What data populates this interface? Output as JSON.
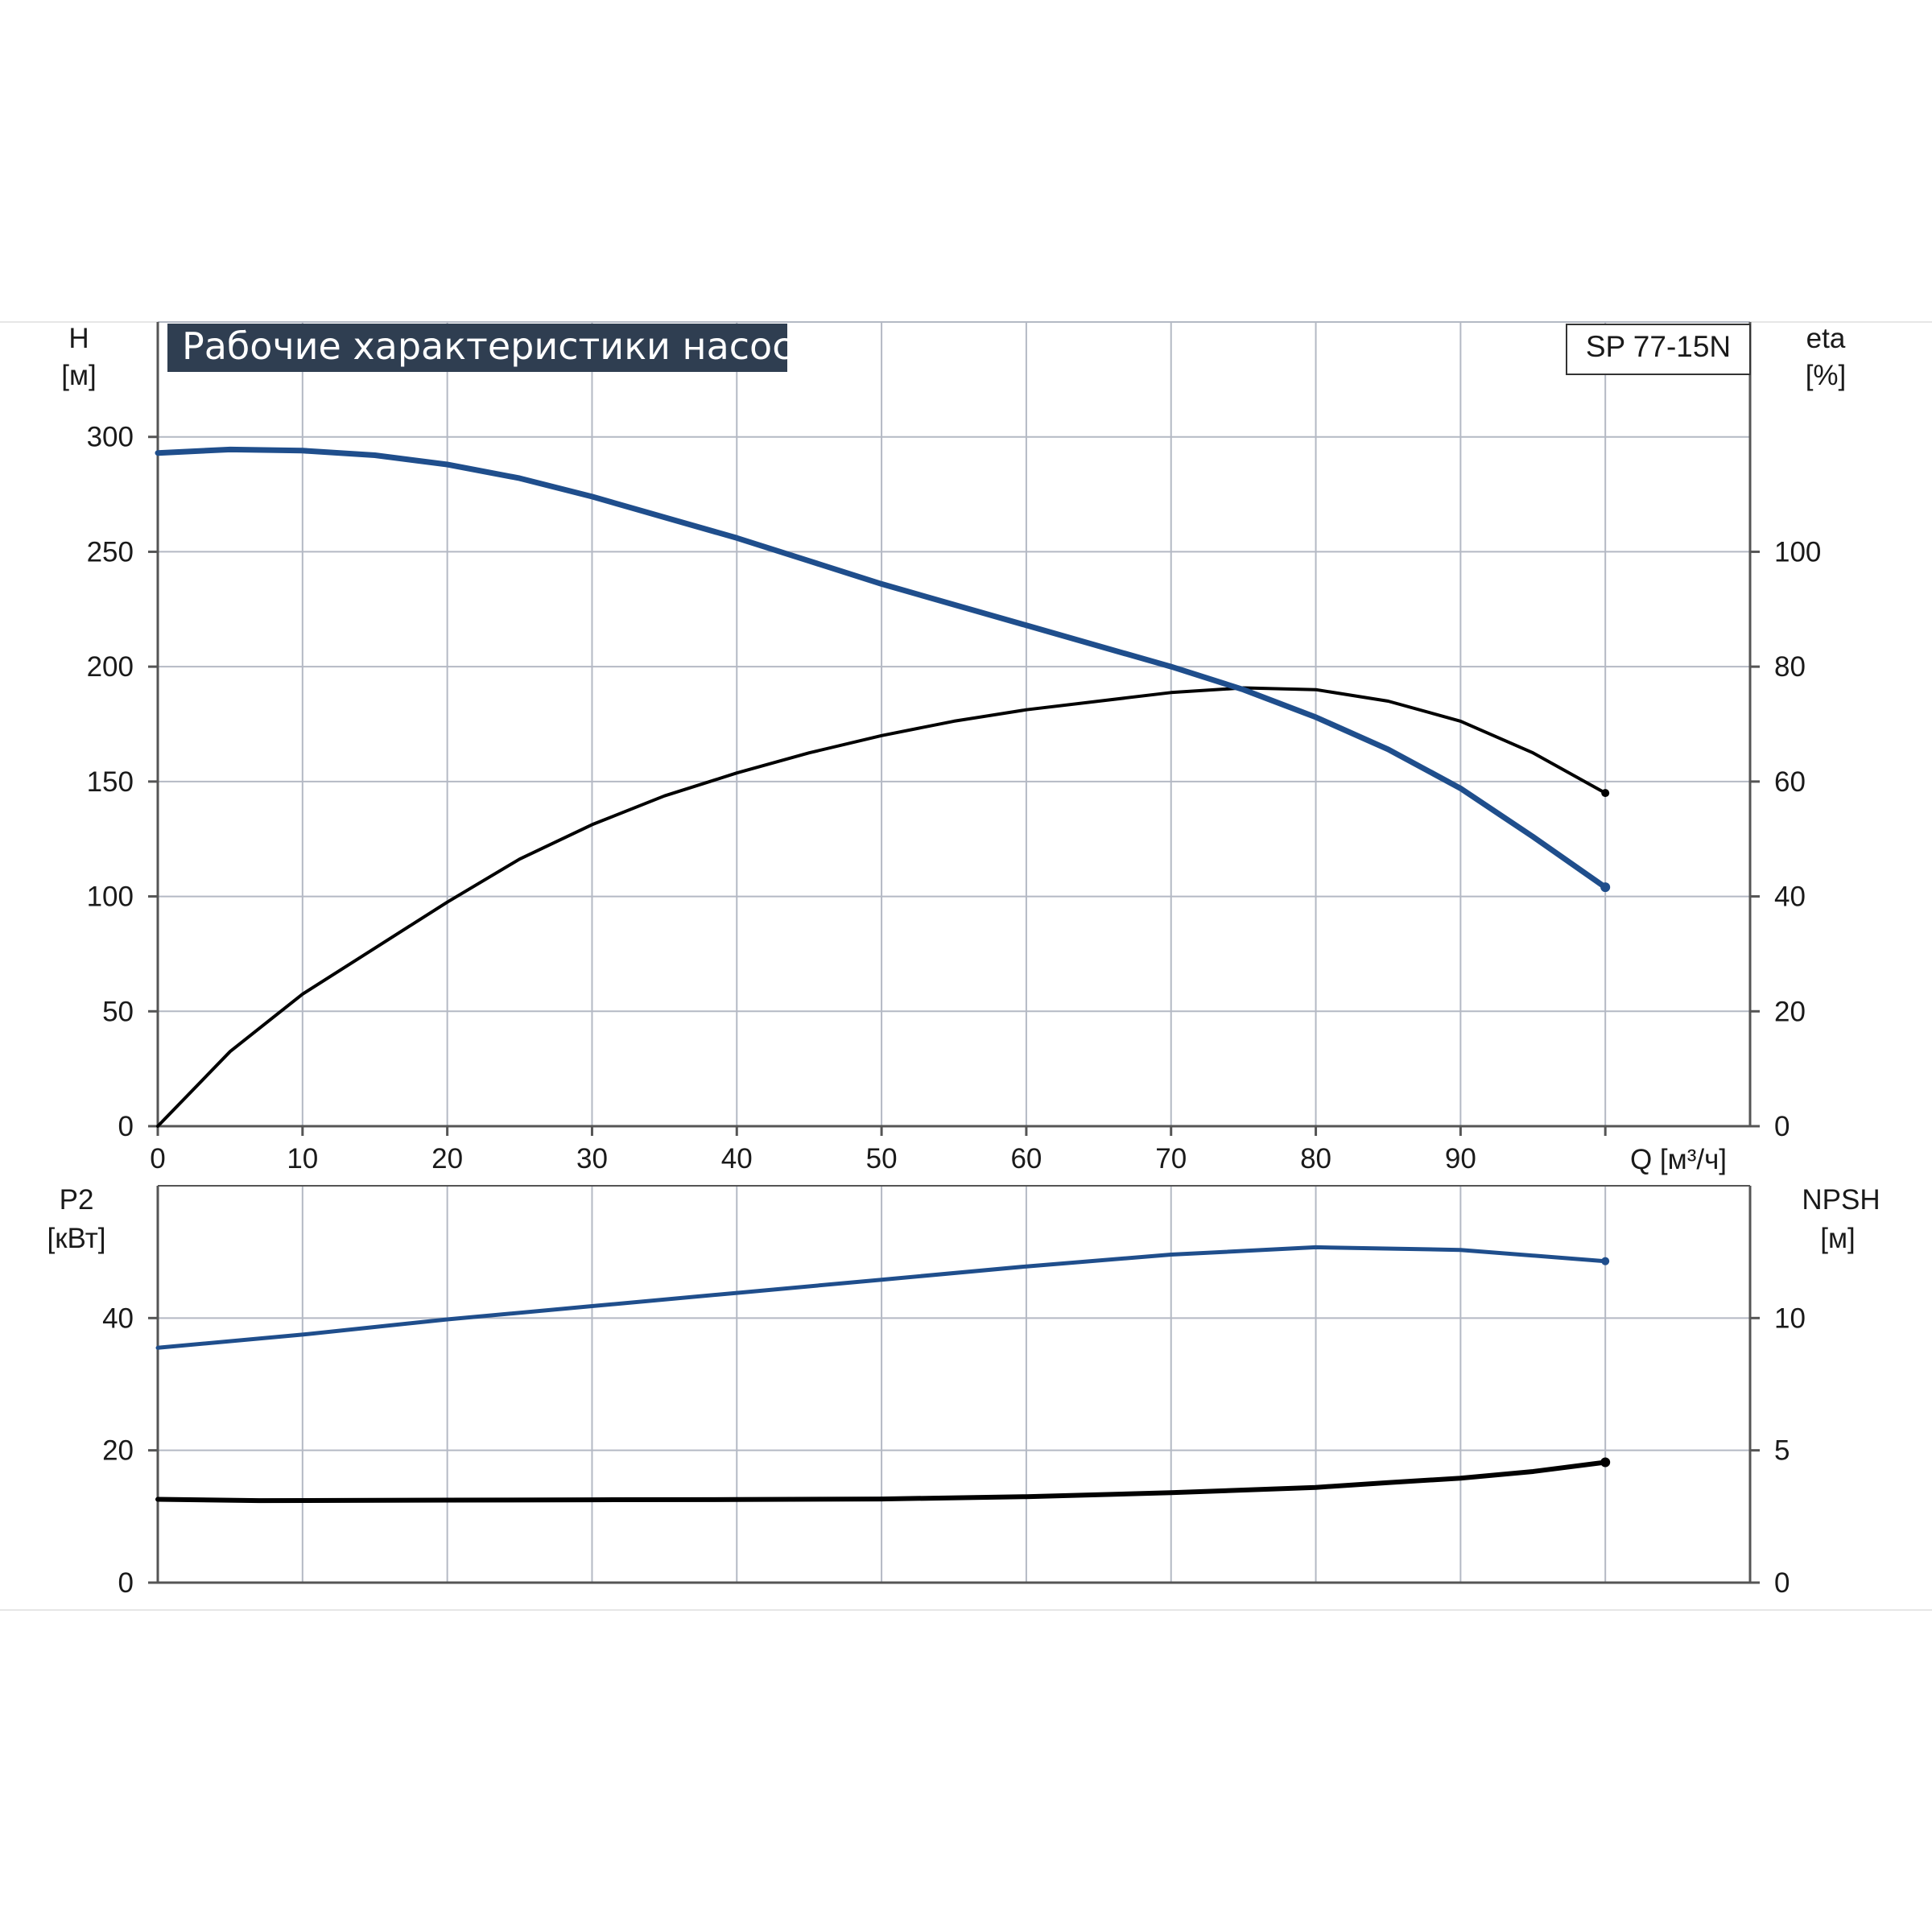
{
  "title": "Рабочие характеристики насоса",
  "model": "SP 77-15N",
  "colors": {
    "blue_curve": "#1f4e8c",
    "black_curve": "#000000",
    "grid": "#b4b9c4",
    "title_bg": "#2f3e51"
  },
  "chart_data": [
    {
      "type": "line",
      "panel": "upper",
      "left_axis": {
        "label": "H",
        "unit": "[м]",
        "ticks": [
          "0",
          "50",
          "100",
          "150",
          "200",
          "250",
          "300"
        ],
        "ylim": [
          0,
          350
        ]
      },
      "right_axis": {
        "label": "eta",
        "unit": "[%]",
        "ticks": [
          "0",
          "20",
          "40",
          "60",
          "80",
          "100"
        ],
        "ylim": [
          0,
          140
        ]
      },
      "x_axis": {
        "label": "Q [м³/ч]",
        "ticks": [
          "0",
          "10",
          "20",
          "30",
          "40",
          "50",
          "60",
          "70",
          "80",
          "90"
        ],
        "xlim": [
          0,
          110
        ]
      },
      "grid": true,
      "series": [
        {
          "name": "H",
          "axis": "left",
          "color": "#1f4e8c",
          "x": [
            0,
            5,
            10,
            15,
            20,
            25,
            30,
            35,
            40,
            45,
            50,
            55,
            60,
            65,
            70,
            75,
            80,
            85,
            90,
            95,
            100
          ],
          "y": [
            293,
            294.5,
            294,
            292,
            288,
            282,
            274,
            265,
            256,
            246,
            236,
            227,
            218,
            209,
            200,
            190,
            178,
            164,
            147,
            126,
            104
          ]
        },
        {
          "name": "eta",
          "axis": "right",
          "color": "#000000",
          "x": [
            0,
            5,
            10,
            15,
            20,
            25,
            30,
            35,
            40,
            45,
            50,
            55,
            60,
            65,
            70,
            75,
            80,
            85,
            90,
            95,
            100
          ],
          "y": [
            0,
            13,
            23,
            31,
            39,
            46.5,
            52.5,
            57.5,
            61.5,
            65,
            68,
            70.5,
            72.5,
            74,
            75.5,
            76.3,
            76,
            74,
            70.5,
            65,
            58
          ]
        }
      ]
    },
    {
      "type": "line",
      "panel": "lower",
      "left_axis": {
        "label": "P2",
        "unit": "[кВт]",
        "ticks": [
          "0",
          "20",
          "40"
        ],
        "ylim": [
          0,
          60
        ]
      },
      "right_axis": {
        "label": "NPSH",
        "unit": "[м]",
        "ticks": [
          "0",
          "5",
          "10"
        ],
        "ylim": [
          0,
          15
        ]
      },
      "x_axis": {
        "xlim": [
          0,
          110
        ]
      },
      "grid": true,
      "series": [
        {
          "name": "P2",
          "axis": "left",
          "color": "#1f4e8c",
          "x": [
            0,
            10,
            20,
            30,
            40,
            50,
            60,
            70,
            80,
            90,
            100
          ],
          "y": [
            35.5,
            37.5,
            39.8,
            41.8,
            43.8,
            45.8,
            47.8,
            49.6,
            50.7,
            50.3,
            48.6
          ]
        },
        {
          "name": "NPSH",
          "axis": "right",
          "color": "#000000",
          "x": [
            0,
            7,
            20,
            30,
            40,
            50,
            60,
            70,
            80,
            85,
            90,
            95,
            100
          ],
          "y": [
            3.15,
            3.1,
            3.12,
            3.13,
            3.14,
            3.16,
            3.25,
            3.4,
            3.6,
            3.78,
            3.95,
            4.2,
            4.55
          ]
        }
      ]
    }
  ]
}
